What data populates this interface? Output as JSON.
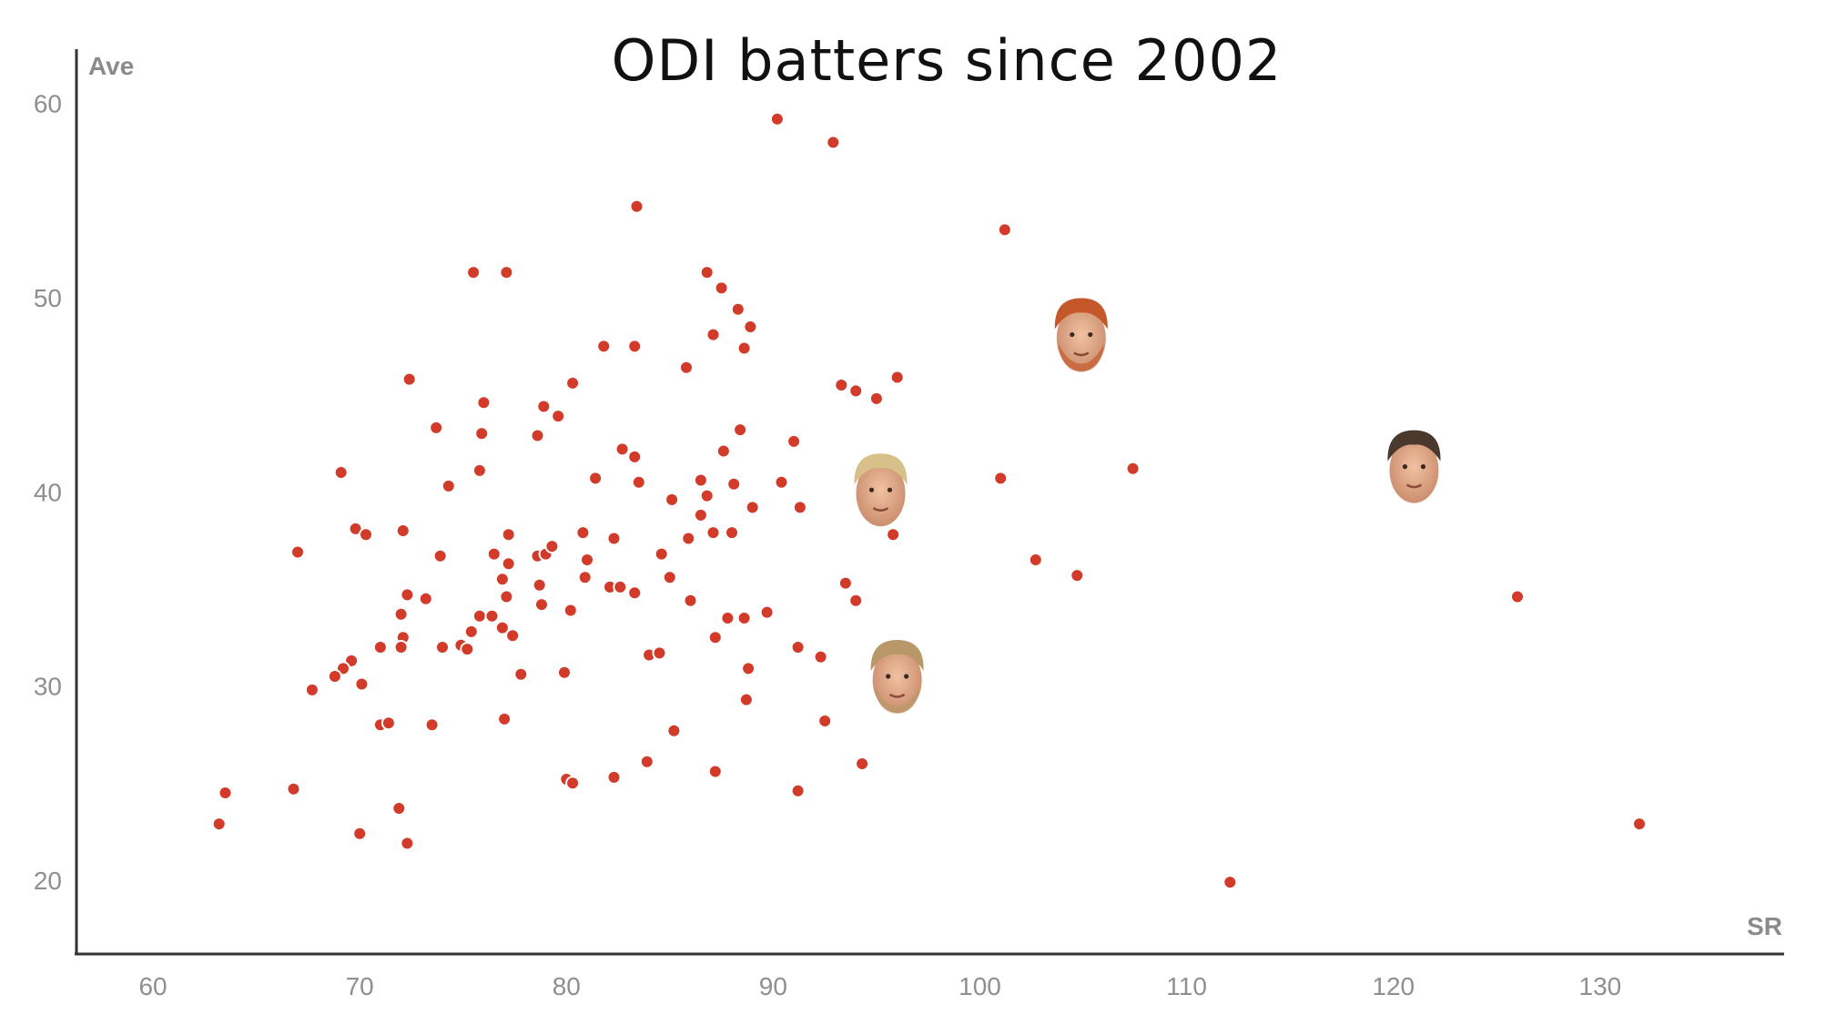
{
  "chart_data": {
    "type": "scatter",
    "title": "ODI batters since 2002",
    "xlabel": "SR",
    "ylabel": "Ave",
    "xlim": [
      56.3,
      138.9
    ],
    "ylim": [
      16.2,
      62.8
    ],
    "xticks": [
      60,
      70,
      80,
      90,
      100,
      110,
      120,
      130
    ],
    "yticks": [
      20,
      30,
      40,
      50,
      60
    ],
    "grid": false,
    "colors": {
      "point": "#d23a2a",
      "axis": "#333333",
      "text": "#8f8f8f"
    },
    "points": [
      [
        90.2,
        59.2
      ],
      [
        92.9,
        58.0
      ],
      [
        83.4,
        54.7
      ],
      [
        101.2,
        53.5
      ],
      [
        75.5,
        51.3
      ],
      [
        77.1,
        51.3
      ],
      [
        86.8,
        51.3
      ],
      [
        87.5,
        50.5
      ],
      [
        88.3,
        49.4
      ],
      [
        88.9,
        48.5
      ],
      [
        87.1,
        48.1
      ],
      [
        81.8,
        47.5
      ],
      [
        83.3,
        47.5
      ],
      [
        88.6,
        47.4
      ],
      [
        72.4,
        45.8
      ],
      [
        85.8,
        46.4
      ],
      [
        96.0,
        45.9
      ],
      [
        93.3,
        45.5
      ],
      [
        94.0,
        45.2
      ],
      [
        95.0,
        44.8
      ],
      [
        80.3,
        45.6
      ],
      [
        76.0,
        44.6
      ],
      [
        78.9,
        44.4
      ],
      [
        79.6,
        43.9
      ],
      [
        73.7,
        43.3
      ],
      [
        75.9,
        43.0
      ],
      [
        78.6,
        42.9
      ],
      [
        88.4,
        43.2
      ],
      [
        91.0,
        42.6
      ],
      [
        82.7,
        42.2
      ],
      [
        87.6,
        42.1
      ],
      [
        83.3,
        41.8
      ],
      [
        69.1,
        41.0
      ],
      [
        75.8,
        41.1
      ],
      [
        81.4,
        40.7
      ],
      [
        83.5,
        40.5
      ],
      [
        86.5,
        40.6
      ],
      [
        88.1,
        40.4
      ],
      [
        90.4,
        40.5
      ],
      [
        101.0,
        40.7
      ],
      [
        107.4,
        41.2
      ],
      [
        74.3,
        40.3
      ],
      [
        86.8,
        39.8
      ],
      [
        85.1,
        39.6
      ],
      [
        89.0,
        39.2
      ],
      [
        91.3,
        39.2
      ],
      [
        86.5,
        38.8
      ],
      [
        69.8,
        38.1
      ],
      [
        70.3,
        37.8
      ],
      [
        72.1,
        38.0
      ],
      [
        77.2,
        37.8
      ],
      [
        80.8,
        37.9
      ],
      [
        82.3,
        37.6
      ],
      [
        85.9,
        37.6
      ],
      [
        87.1,
        37.9
      ],
      [
        88.0,
        37.9
      ],
      [
        95.8,
        37.8
      ],
      [
        67.0,
        36.9
      ],
      [
        73.9,
        36.7
      ],
      [
        76.5,
        36.8
      ],
      [
        77.2,
        36.3
      ],
      [
        78.6,
        36.7
      ],
      [
        79.0,
        36.8
      ],
      [
        79.3,
        37.2
      ],
      [
        81.0,
        36.5
      ],
      [
        84.6,
        36.8
      ],
      [
        102.7,
        36.5
      ],
      [
        76.9,
        35.5
      ],
      [
        78.7,
        35.2
      ],
      [
        80.9,
        35.6
      ],
      [
        82.1,
        35.1
      ],
      [
        82.6,
        35.1
      ],
      [
        85.0,
        35.6
      ],
      [
        93.5,
        35.3
      ],
      [
        104.7,
        35.7
      ],
      [
        72.3,
        34.7
      ],
      [
        73.2,
        34.5
      ],
      [
        77.1,
        34.6
      ],
      [
        78.8,
        34.2
      ],
      [
        80.2,
        33.9
      ],
      [
        83.3,
        34.8
      ],
      [
        86.0,
        34.4
      ],
      [
        94.0,
        34.4
      ],
      [
        126.0,
        34.6
      ],
      [
        72.0,
        33.7
      ],
      [
        75.8,
        33.6
      ],
      [
        76.4,
        33.6
      ],
      [
        87.8,
        33.5
      ],
      [
        88.6,
        33.5
      ],
      [
        89.7,
        33.8
      ],
      [
        75.4,
        32.8
      ],
      [
        76.9,
        33.0
      ],
      [
        77.4,
        32.6
      ],
      [
        72.1,
        32.5
      ],
      [
        74.9,
        32.1
      ],
      [
        75.2,
        31.9
      ],
      [
        71.0,
        32.0
      ],
      [
        72.0,
        32.0
      ],
      [
        74.0,
        32.0
      ],
      [
        84.0,
        31.6
      ],
      [
        84.5,
        31.7
      ],
      [
        87.2,
        32.5
      ],
      [
        91.2,
        32.0
      ],
      [
        92.3,
        31.5
      ],
      [
        69.6,
        31.3
      ],
      [
        69.2,
        30.9
      ],
      [
        68.8,
        30.5
      ],
      [
        70.1,
        30.1
      ],
      [
        67.7,
        29.8
      ],
      [
        77.8,
        30.6
      ],
      [
        79.9,
        30.7
      ],
      [
        88.8,
        30.9
      ],
      [
        88.7,
        29.3
      ],
      [
        71.0,
        28.0
      ],
      [
        71.4,
        28.1
      ],
      [
        73.5,
        28.0
      ],
      [
        77.0,
        28.3
      ],
      [
        92.5,
        28.2
      ],
      [
        85.2,
        27.7
      ],
      [
        83.9,
        26.1
      ],
      [
        94.3,
        26.0
      ],
      [
        87.2,
        25.6
      ],
      [
        80.0,
        25.2
      ],
      [
        80.3,
        25.0
      ],
      [
        82.3,
        25.3
      ],
      [
        91.2,
        24.6
      ],
      [
        63.5,
        24.5
      ],
      [
        66.8,
        24.7
      ],
      [
        63.2,
        22.9
      ],
      [
        71.9,
        23.7
      ],
      [
        70.0,
        22.4
      ],
      [
        72.3,
        21.9
      ],
      [
        112.1,
        19.9
      ],
      [
        131.9,
        22.9
      ]
    ],
    "highlighted_players": [
      {
        "icon": "player-face-icon-ginger",
        "sr": 104.9,
        "ave": 48.1
      },
      {
        "icon": "player-face-icon-blond",
        "sr": 95.2,
        "ave": 40.1
      },
      {
        "icon": "player-face-icon-dark",
        "sr": 121.0,
        "ave": 41.3
      },
      {
        "icon": "player-face-icon-beard",
        "sr": 96.0,
        "ave": 30.5
      }
    ]
  }
}
